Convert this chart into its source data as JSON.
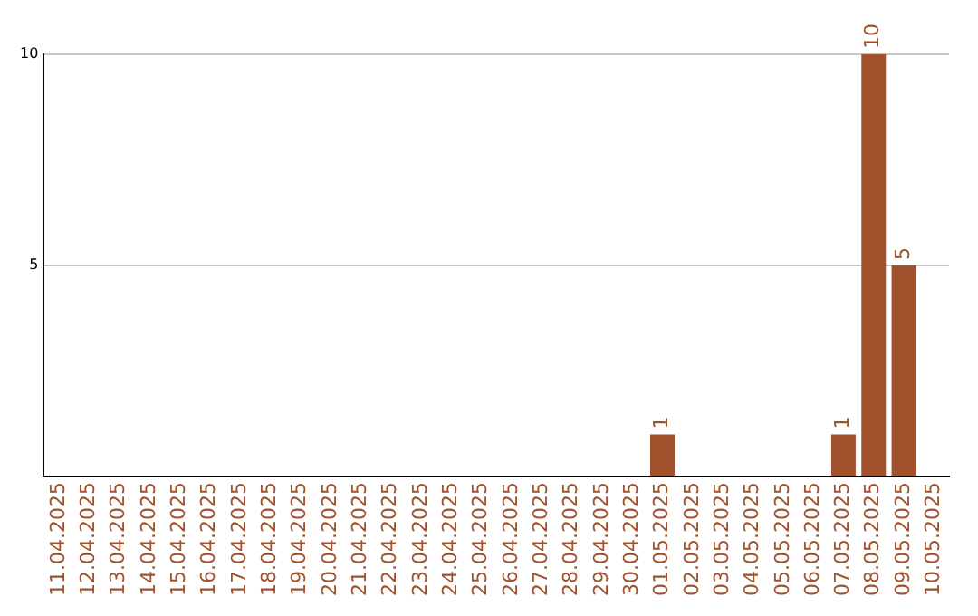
{
  "chart_data": {
    "type": "bar",
    "categories": [
      "11.04.2025",
      "12.04.2025",
      "13.04.2025",
      "14.04.2025",
      "15.04.2025",
      "16.04.2025",
      "17.04.2025",
      "18.04.2025",
      "19.04.2025",
      "20.04.2025",
      "21.04.2025",
      "22.04.2025",
      "23.04.2025",
      "24.04.2025",
      "25.04.2025",
      "26.04.2025",
      "27.04.2025",
      "28.04.2025",
      "29.04.2025",
      "30.04.2025",
      "01.05.2025",
      "02.05.2025",
      "03.05.2025",
      "04.05.2025",
      "05.05.2025",
      "06.05.2025",
      "07.05.2025",
      "08.05.2025",
      "09.05.2025",
      "10.05.2025"
    ],
    "values": [
      0,
      0,
      0,
      0,
      0,
      0,
      0,
      0,
      0,
      0,
      0,
      0,
      0,
      0,
      0,
      0,
      0,
      0,
      0,
      0,
      1,
      0,
      0,
      0,
      0,
      0,
      1,
      10,
      5,
      0
    ],
    "value_labels": [
      null,
      null,
      null,
      null,
      null,
      null,
      null,
      null,
      null,
      null,
      null,
      null,
      null,
      null,
      null,
      null,
      null,
      null,
      null,
      null,
      "1",
      null,
      null,
      null,
      null,
      null,
      "1",
      "10",
      "5",
      null
    ],
    "color": "#a0522d",
    "ylim": [
      0,
      10
    ],
    "yticks": [
      5,
      10
    ],
    "grid": "y",
    "legend": false
  }
}
